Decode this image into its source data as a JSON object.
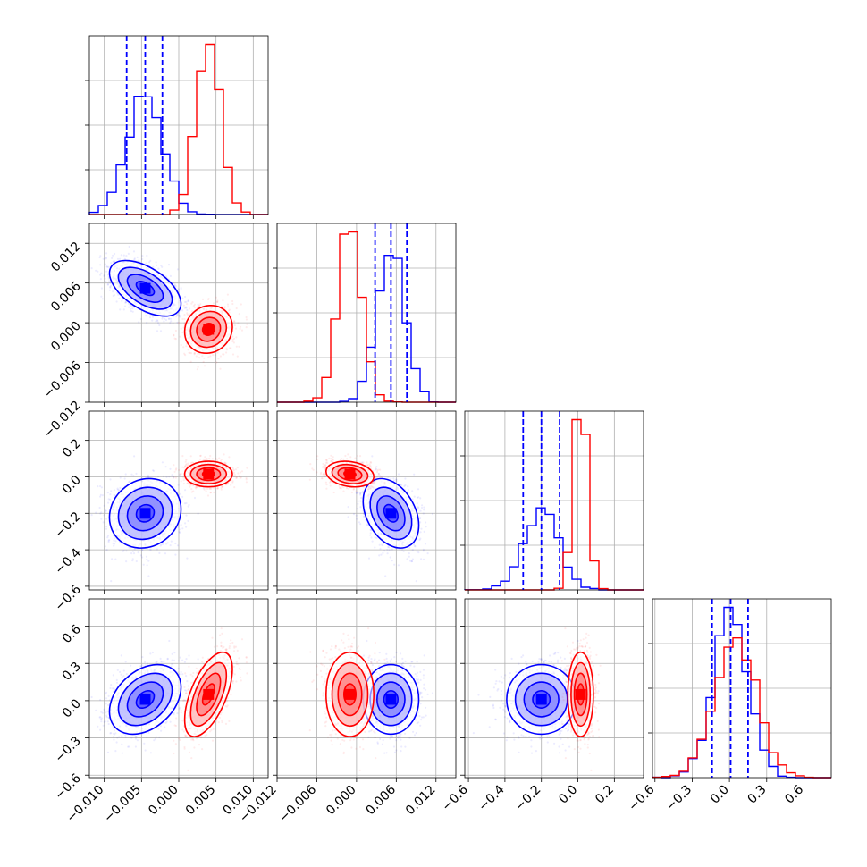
{
  "chart_data": {
    "type": "corner",
    "params": [
      {
        "range": [
          -0.012,
          0.012
        ],
        "ticks": [
          -0.01,
          -0.005,
          0.0,
          0.005,
          0.01
        ],
        "tick_labels": [
          "−0.010",
          "−0.005",
          "0.000",
          "0.005",
          "0.010"
        ]
      },
      {
        "range": [
          -0.012,
          0.015
        ],
        "ticks": [
          -0.012,
          -0.006,
          0.0,
          0.006,
          0.012
        ],
        "tick_labels": [
          "−0.012",
          "−0.006",
          "0.000",
          "0.006",
          "0.012"
        ]
      },
      {
        "range": [
          -0.62,
          0.36
        ],
        "ticks": [
          -0.6,
          -0.4,
          -0.2,
          0.0,
          0.2
        ],
        "tick_labels": [
          "−0.6",
          "−0.4",
          "−0.2",
          "0.0",
          "0.2"
        ]
      },
      {
        "range": [
          -0.62,
          0.82
        ],
        "ticks": [
          -0.6,
          -0.3,
          0.0,
          0.3,
          0.6
        ],
        "tick_labels": [
          "−0.6",
          "−0.3",
          "0.0",
          "0.3",
          "0.6"
        ]
      }
    ],
    "series": [
      {
        "color": "#0000ff",
        "mean": [
          -0.0045,
          0.0052,
          -0.2,
          0.01
        ],
        "std": [
          0.0024,
          0.0021,
          0.095,
          0.14
        ],
        "corr": [
          [
            1.0,
            -0.55,
            0.12,
            0.35
          ],
          [
            -0.55,
            1.0,
            -0.35,
            0.0
          ],
          [
            0.12,
            -0.35,
            1.0,
            0.0
          ],
          [
            0.35,
            0.0,
            0.0,
            1.0
          ]
        ],
        "quantiles": [
          [
            -0.007,
            -0.0045,
            -0.0022
          ],
          [
            0.0028,
            0.0052,
            0.0076
          ],
          [
            -0.3,
            -0.2,
            -0.1
          ],
          [
            -0.14,
            0.01,
            0.15
          ]
        ]
      },
      {
        "color": "#ff0000",
        "mean": [
          0.004,
          -0.001,
          0.015,
          0.05
        ],
        "std": [
          0.0016,
          0.0018,
          0.035,
          0.17
        ],
        "corr": [
          [
            1.0,
            0.1,
            0.0,
            0.6
          ],
          [
            0.1,
            1.0,
            -0.2,
            0.0
          ],
          [
            0.0,
            -0.2,
            1.0,
            0.0
          ],
          [
            0.6,
            0.0,
            0.0,
            1.0
          ]
        ]
      }
    ],
    "grid": true
  }
}
